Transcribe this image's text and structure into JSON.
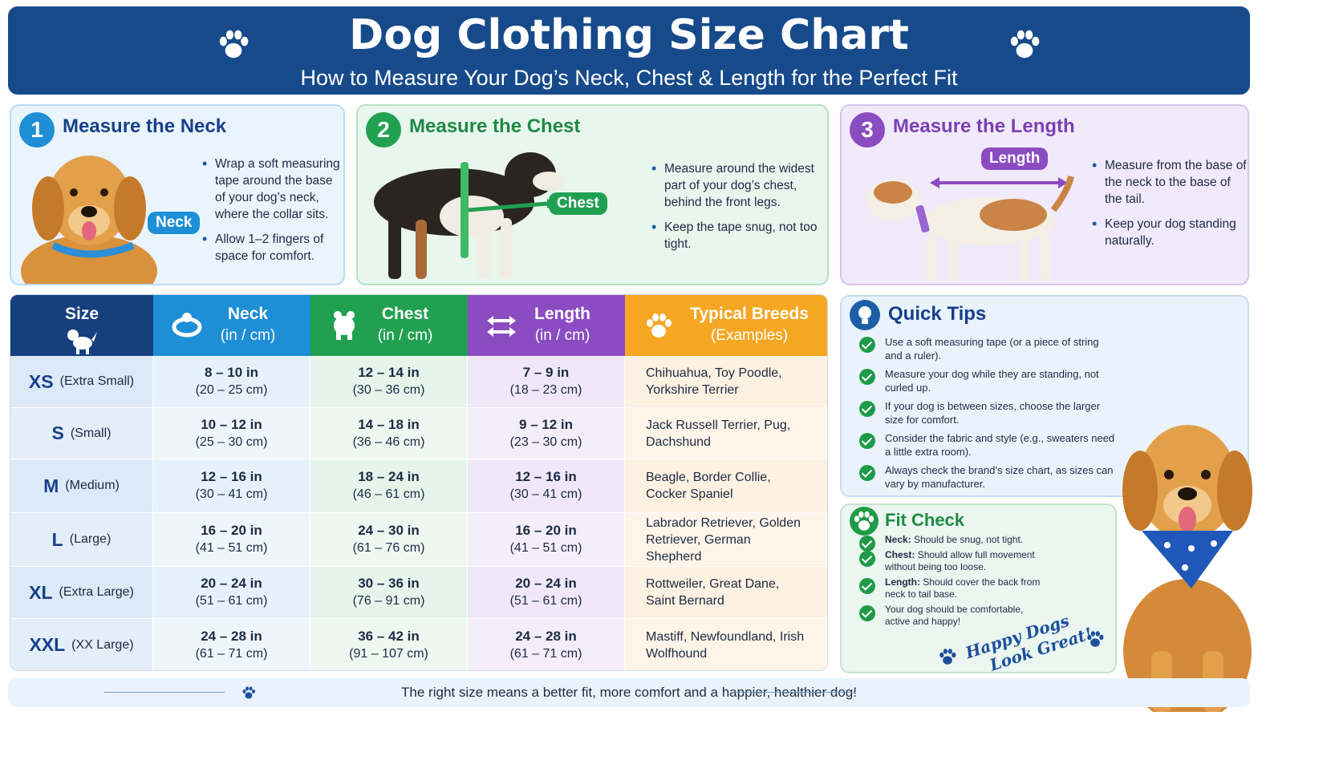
{
  "header": {
    "title": "Dog Clothing Size Chart",
    "subtitle": "How to Measure Your Dog’s Neck, Chest & Length for the Perfect Fit"
  },
  "steps": [
    {
      "number": "1",
      "title": "Measure the Neck",
      "tag": "Neck",
      "bullets": [
        "Wrap a soft measuring tape around the base of your dog’s neck, where the collar sits.",
        "Allow 1–2 fingers of space for comfort."
      ]
    },
    {
      "number": "2",
      "title": "Measure the Chest",
      "tag": "Chest",
      "bullets": [
        "Measure around the widest part of your dog’s chest, behind the front legs.",
        "Keep the tape snug, not too tight."
      ]
    },
    {
      "number": "3",
      "title": "Measure the Length",
      "tag": "Length",
      "bullets": [
        "Measure from the base of the neck to the base of the tail.",
        "Keep your dog standing naturally."
      ]
    }
  ],
  "table": {
    "headers": [
      {
        "title": "Size",
        "sub": "",
        "icon": "dog-icon"
      },
      {
        "title": "Neck",
        "sub": "(in / cm)",
        "icon": "collar-icon"
      },
      {
        "title": "Chest",
        "sub": "(in / cm)",
        "icon": "dog-body-icon"
      },
      {
        "title": "Length",
        "sub": "(in / cm)",
        "icon": "arrows-icon"
      },
      {
        "title": "Typical Breeds",
        "sub": "(Examples)",
        "icon": "paw-icon"
      }
    ],
    "rows": [
      {
        "code": "XS",
        "name": "(Extra Small)",
        "neck_in": "8 – 10 in",
        "neck_cm": "(20 – 25 cm)",
        "chest_in": "12 – 14 in",
        "chest_cm": "(30 – 36 cm)",
        "length_in": "7 – 9 in",
        "length_cm": "(18 – 23 cm)",
        "breeds": "Chihuahua, Toy Poodle, Yorkshire Terrier"
      },
      {
        "code": "S",
        "name": "(Small)",
        "neck_in": "10 – 12 in",
        "neck_cm": "(25 – 30 cm)",
        "chest_in": "14 – 18 in",
        "chest_cm": "(36 – 46 cm)",
        "length_in": "9 – 12 in",
        "length_cm": "(23 – 30 cm)",
        "breeds": "Jack Russell Terrier, Pug, Dachshund"
      },
      {
        "code": "M",
        "name": "(Medium)",
        "neck_in": "12 – 16 in",
        "neck_cm": "(30 – 41 cm)",
        "chest_in": "18 – 24 in",
        "chest_cm": "(46 – 61 cm)",
        "length_in": "12 – 16 in",
        "length_cm": "(30 – 41 cm)",
        "breeds": "Beagle, Border Collie, Cocker Spaniel"
      },
      {
        "code": "L",
        "name": "(Large)",
        "neck_in": "16 – 20 in",
        "neck_cm": "(41 – 51 cm)",
        "chest_in": "24 – 30 in",
        "chest_cm": "(61 – 76 cm)",
        "length_in": "16 – 20 in",
        "length_cm": "(41 – 51 cm)",
        "breeds": "Labrador Retriever, Golden Retriever, German Shepherd"
      },
      {
        "code": "XL",
        "name": "(Extra Large)",
        "neck_in": "20 – 24 in",
        "neck_cm": "(51 – 61 cm)",
        "chest_in": "30 – 36 in",
        "chest_cm": "(76 – 91 cm)",
        "length_in": "20 – 24 in",
        "length_cm": "(51 – 61 cm)",
        "breeds": "Rottweiler, Great Dane, Saint Bernard"
      },
      {
        "code": "XXL",
        "name": "(XX Large)",
        "neck_in": "24 – 28 in",
        "neck_cm": "(61 – 71 cm)",
        "chest_in": "36 – 42 in",
        "chest_cm": "(91 – 107 cm)",
        "length_in": "24 – 28 in",
        "length_cm": "(61 – 71 cm)",
        "breeds": "Mastiff, Newfoundland, Irish Wolfhound"
      }
    ]
  },
  "quick_tips": {
    "title": "Quick Tips",
    "items": [
      "Use a soft measuring tape (or a piece of string and a ruler).",
      "Measure your dog while they are standing, not curled up.",
      "If your dog is between sizes, choose the larger size for comfort.",
      "Consider the fabric and style (e.g., sweaters need a little extra room).",
      "Always check the brand’s size chart, as sizes can vary by manufacturer."
    ]
  },
  "fit_check": {
    "title": "Fit Check",
    "items": [
      {
        "label": "Neck:",
        "text": "Should be snug, not tight."
      },
      {
        "label": "Chest:",
        "text": "Should allow full movement without being too loose."
      },
      {
        "label": "Length:",
        "text": "Should cover the back from neck to tail base."
      },
      {
        "label": "",
        "text": "Your dog should be comfortable, active and happy!"
      }
    ],
    "signature_line1": "Happy Dogs",
    "signature_line2": "Look Great!"
  },
  "footer": {
    "text": "The right size means a better fit, more comfort and a happier, healthier dog!"
  },
  "colors": {
    "header_bg": "#174a8b",
    "neck": "#1e8fd6",
    "chest": "#22a052",
    "length": "#8b4cc2",
    "breeds": "#f5a623",
    "size": "#163f7e"
  }
}
